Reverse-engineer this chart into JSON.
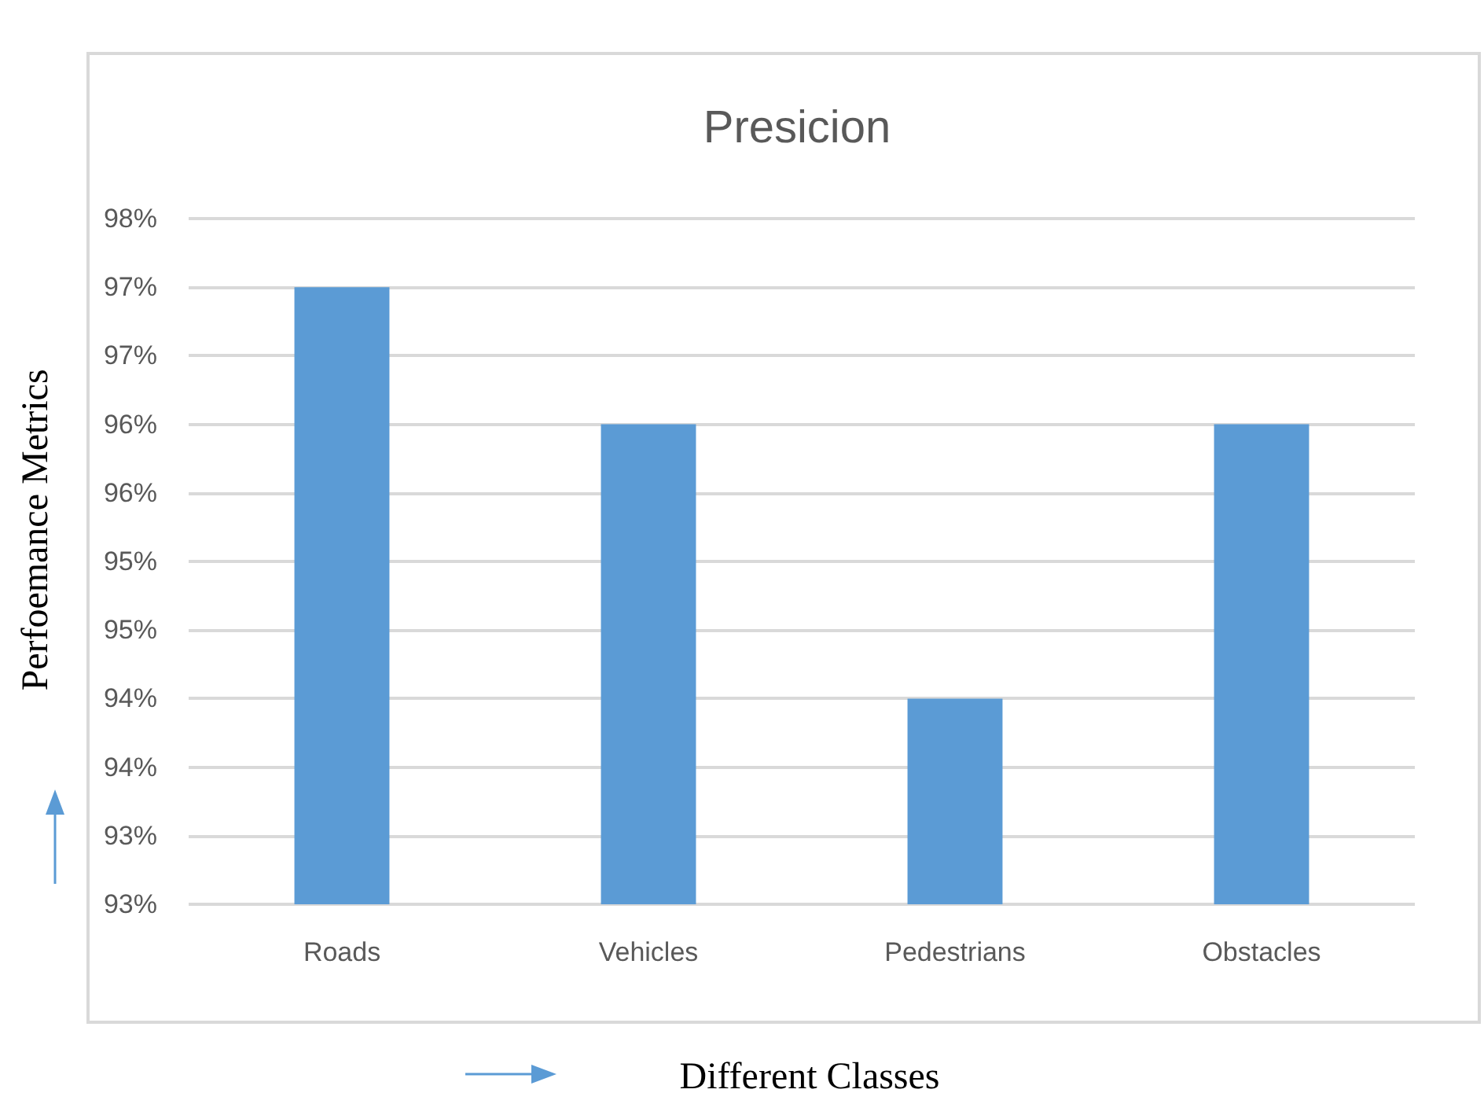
{
  "chart_data": {
    "type": "bar",
    "title": "Presicion",
    "xlabel": "Different Classes",
    "ylabel": "Perfoemance Metrics",
    "categories": [
      "Roads",
      "Vehicles",
      "Pedestrians",
      "Obstacles"
    ],
    "values": [
      97,
      96,
      94,
      96
    ],
    "color": "#5b9bd5",
    "ylim": [
      92.5,
      97.5
    ],
    "yticks": [
      {
        "value": 92.5,
        "label": "93%"
      },
      {
        "value": 93,
        "label": "93%"
      },
      {
        "value": 93.5,
        "label": "94%"
      },
      {
        "value": 94,
        "label": "94%"
      },
      {
        "value": 94.5,
        "label": "95%"
      },
      {
        "value": 95,
        "label": "95%"
      },
      {
        "value": 95.5,
        "label": "96%"
      },
      {
        "value": 96,
        "label": "96%"
      },
      {
        "value": 96.5,
        "label": "97%"
      },
      {
        "value": 97,
        "label": "97%"
      },
      {
        "value": 97.5,
        "label": "98%"
      }
    ],
    "grid": "y"
  }
}
